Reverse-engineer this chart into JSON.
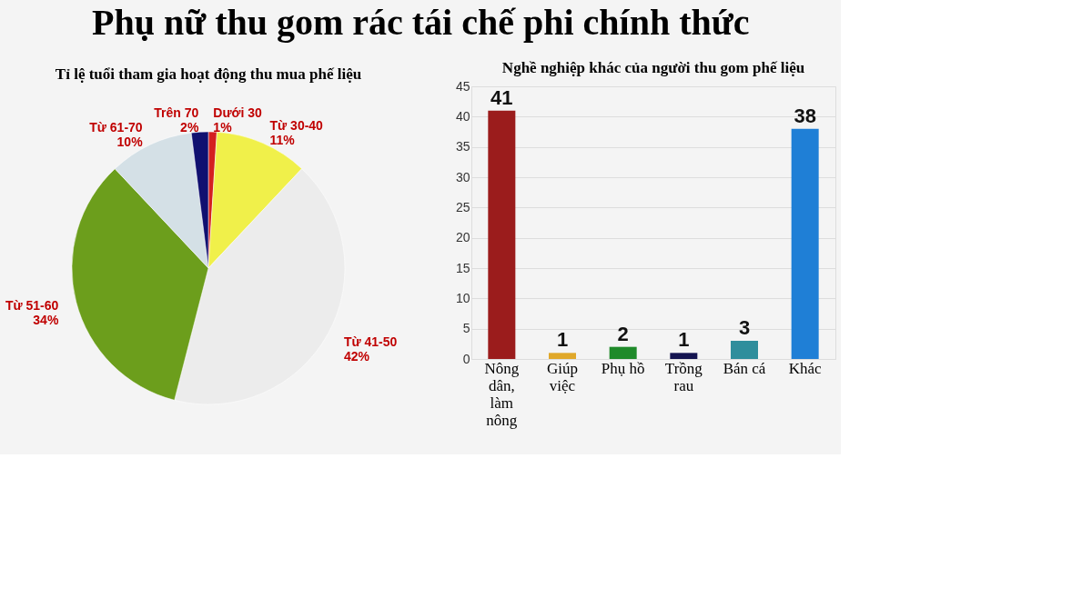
{
  "chart_data": [
    {
      "type": "other",
      "title": "Phụ nữ thu gom rác tái chế phi chính thức"
    },
    {
      "type": "pie",
      "title": "Tỉ lệ tuổi tham gia hoạt động thu mua phế liệu",
      "categories": [
        "Dưới 30",
        "Từ 30-40",
        "Từ 41-50",
        "Từ 51-60",
        "Từ 61-70",
        "Trên 70"
      ],
      "values": [
        1,
        11,
        42,
        34,
        10,
        2
      ],
      "value_labels": [
        "1%",
        "11%",
        "42%",
        "34%",
        "10%",
        "2%"
      ],
      "colors": [
        "#d42020",
        "#f0f04a",
        "#ececec",
        "#6c9e1c",
        "#d4e0e6",
        "#101070"
      ],
      "legend": false
    },
    {
      "type": "bar",
      "title": "Nghề nghiệp khác của người thu gom phế liệu",
      "categories": [
        "Nông dân, làm nông",
        "Giúp việc",
        "Phụ hồ",
        "Trồng rau",
        "Bán cá",
        "Khác"
      ],
      "values": [
        41,
        1,
        2,
        1,
        3,
        38
      ],
      "colors": [
        "#9b1c1c",
        "#e0a82a",
        "#1f8a2a",
        "#141450",
        "#2f8e9c",
        "#1f7fd6"
      ],
      "ylim": [
        0,
        45
      ],
      "yticks": [
        0,
        5,
        10,
        15,
        20,
        25,
        30,
        35,
        40,
        45
      ],
      "grid": "y",
      "data_labels": true,
      "legend": false
    }
  ]
}
